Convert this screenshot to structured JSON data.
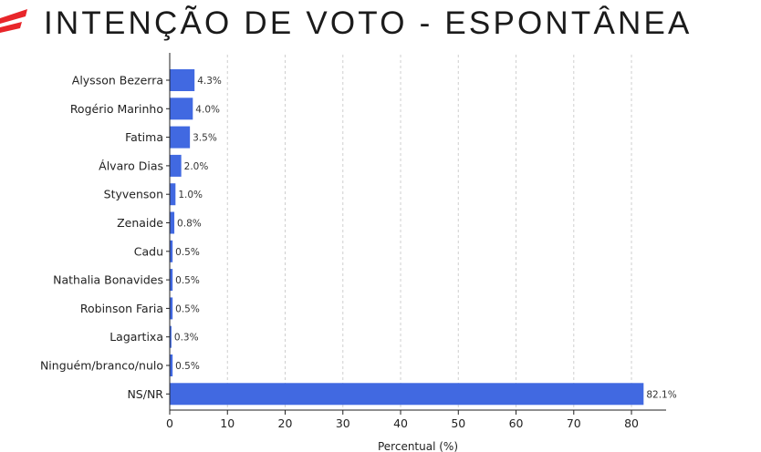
{
  "header": {
    "title": "INTENÇÃO DE VOTO - ESPONTÂNEA",
    "logo_icon": "brand-logo-icon",
    "logo_color": "#e8262a"
  },
  "chart_data": {
    "type": "bar",
    "orientation": "horizontal",
    "title": "",
    "xlabel": "Percentual (%)",
    "ylabel": "",
    "xlim": [
      0,
      86
    ],
    "xticks": [
      0,
      10,
      20,
      30,
      40,
      50,
      60,
      70,
      80
    ],
    "grid": "vertical dashed",
    "bar_color": "#4169e1",
    "categories": [
      "Alysson Bezerra",
      "Rogério Marinho",
      "Fatima",
      "Álvaro Dias",
      "Styvenson",
      "Zenaide",
      "Cadu",
      "Nathalia Bonavides",
      "Robinson Faria",
      "Lagartixa",
      "Ninguém/branco/nulo",
      "NS/NR"
    ],
    "values": [
      4.3,
      4.0,
      3.5,
      2.0,
      1.0,
      0.8,
      0.5,
      0.5,
      0.5,
      0.3,
      0.5,
      82.1
    ],
    "value_labels": [
      "4.3%",
      "4.0%",
      "3.5%",
      "2.0%",
      "1.0%",
      "0.8%",
      "0.5%",
      "0.5%",
      "0.5%",
      "0.3%",
      "0.5%",
      "82.1%"
    ]
  }
}
